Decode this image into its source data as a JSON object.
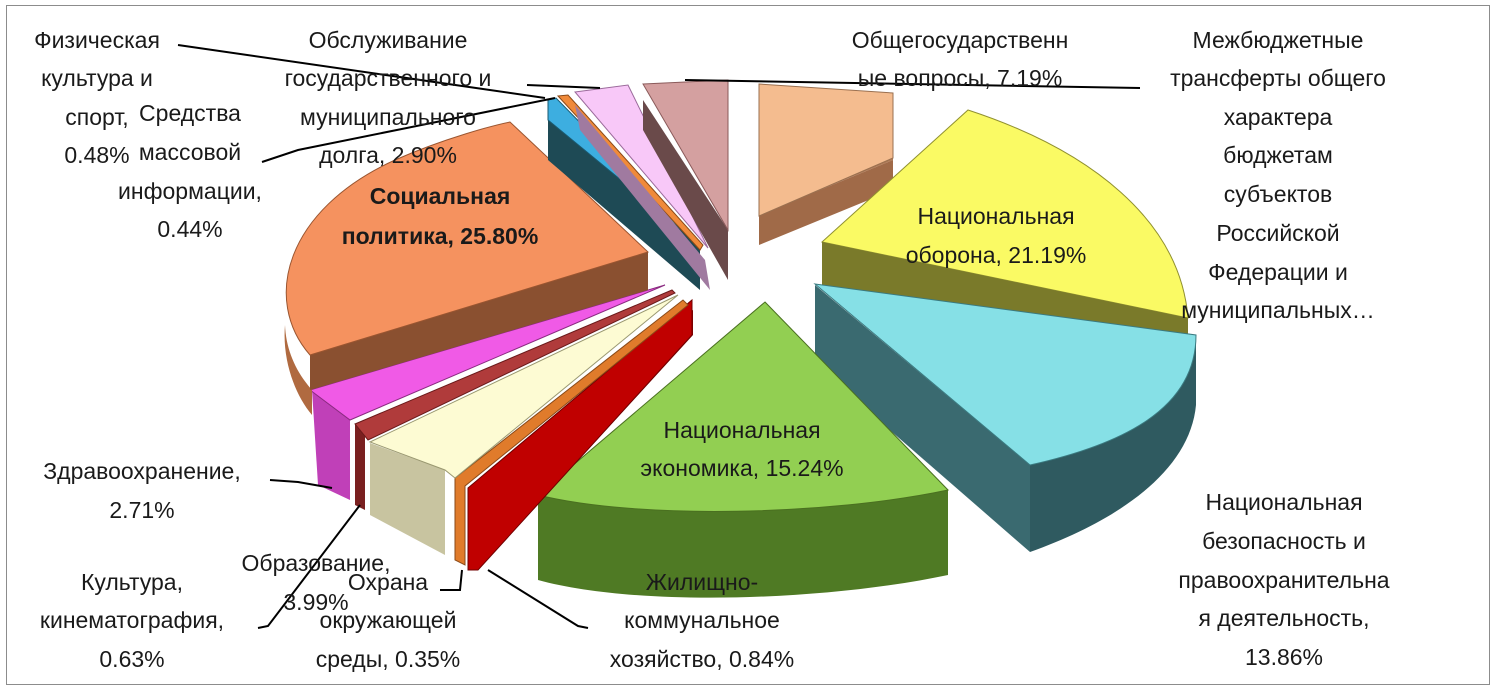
{
  "chart_data": {
    "type": "pie",
    "title": "",
    "style": "3d-exploded",
    "slices": [
      {
        "label": "Общегосударственные вопросы, 7.19%",
        "value": 7.19,
        "color": "#f4bc8f"
      },
      {
        "label": "Межбюджетные трансферты общего характера бюджетам субъектов Российской Федерации и муниципальных…",
        "value": 0.0,
        "color": "#c0c0c0"
      },
      {
        "label": "Национальная оборона, 21.19%",
        "value": 21.19,
        "color": "#fafa64"
      },
      {
        "label": "Национальная безопасность и правоохранительная деятельность, 13.86%",
        "value": 13.86,
        "color": "#86e0e6"
      },
      {
        "label": "Национальная экономика, 15.24%",
        "value": 15.24,
        "color": "#92cf52"
      },
      {
        "label": "Жилищно-коммунальное хозяйство, 0.84%",
        "value": 0.84,
        "color": "#c00000"
      },
      {
        "label": "Охрана окружающей среды, 0.35%",
        "value": 0.35,
        "color": "#e07b2b"
      },
      {
        "label": "Образование, 3.99%",
        "value": 3.99,
        "color": "#fdfbd3"
      },
      {
        "label": "Культура, кинематография, 0.63%",
        "value": 0.63,
        "color": "#b03b3b"
      },
      {
        "label": "Здравоохранение, 2.71%",
        "value": 2.71,
        "color": "#f05ae6"
      },
      {
        "label": "Социальная политика, 25.80%",
        "value": 25.8,
        "color": "#f5925f"
      },
      {
        "label": "Средства массовой информации, 0.44%",
        "value": 0.44,
        "color": "#3daee0"
      },
      {
        "label": "Физическая культура и спорт, 0.48%",
        "value": 0.48,
        "color": "#f08a3a"
      },
      {
        "label": "Обслуживание государственного и муниципального долга, 2.90%",
        "value": 2.9,
        "color": "#f8c8f8"
      },
      {
        "label": "",
        "value": 4.43,
        "color": "#d4a0a0"
      }
    ]
  },
  "labels": {
    "obschegos_1": "Общегосударственн",
    "obschegos_2": "ые вопросы, 7.19%",
    "mezhbyud_1": "Межбюджетные",
    "mezhbyud_2": "трансферты общего",
    "mezhbyud_3": "характера",
    "mezhbyud_4": "бюджетам",
    "mezhbyud_5": "субъектов",
    "mezhbyud_6": "Российской",
    "mezhbyud_7": "Федерации и",
    "mezhbyud_8": "муниципальных…",
    "oborona_1": "Национальная",
    "oborona_2": "оборона, 21.19%",
    "bezop_1": "Национальная",
    "bezop_2": "безопасность и",
    "bezop_3": "правоохранительна",
    "bezop_4": "я деятельность,",
    "bezop_5": "13.86%",
    "econ_1": "Национальная",
    "econ_2": "экономика, 15.24%",
    "zhkh_1": "Жилищно-",
    "zhkh_2": "коммунальное",
    "zhkh_3": "хозяйство, 0.84%",
    "ohrana_1": "Охрана",
    "ohrana_2": "окружающей",
    "ohrana_3": "среды, 0.35%",
    "obraz_1": "Образование,",
    "obraz_2": "3.99%",
    "kult_1": "Культура,",
    "kult_2": "кинематография,",
    "kult_3": "0.63%",
    "zdrav_1": "Здравоохранение,",
    "zdrav_2": "2.71%",
    "soc_1": "Социальная",
    "soc_2": "политика, 25.80%",
    "smi_1": "Средства",
    "smi_2": "массовой",
    "smi_3": "информации,",
    "smi_4": "0.44%",
    "fiz_1": "Физическая",
    "fiz_2": "культура и",
    "fiz_3": "спорт,",
    "fiz_4": "0.48%",
    "dolg_1": "Обслуживание",
    "dolg_2": "государственного и",
    "dolg_3": "муниципального",
    "dolg_4": "долга, 2.90%"
  }
}
